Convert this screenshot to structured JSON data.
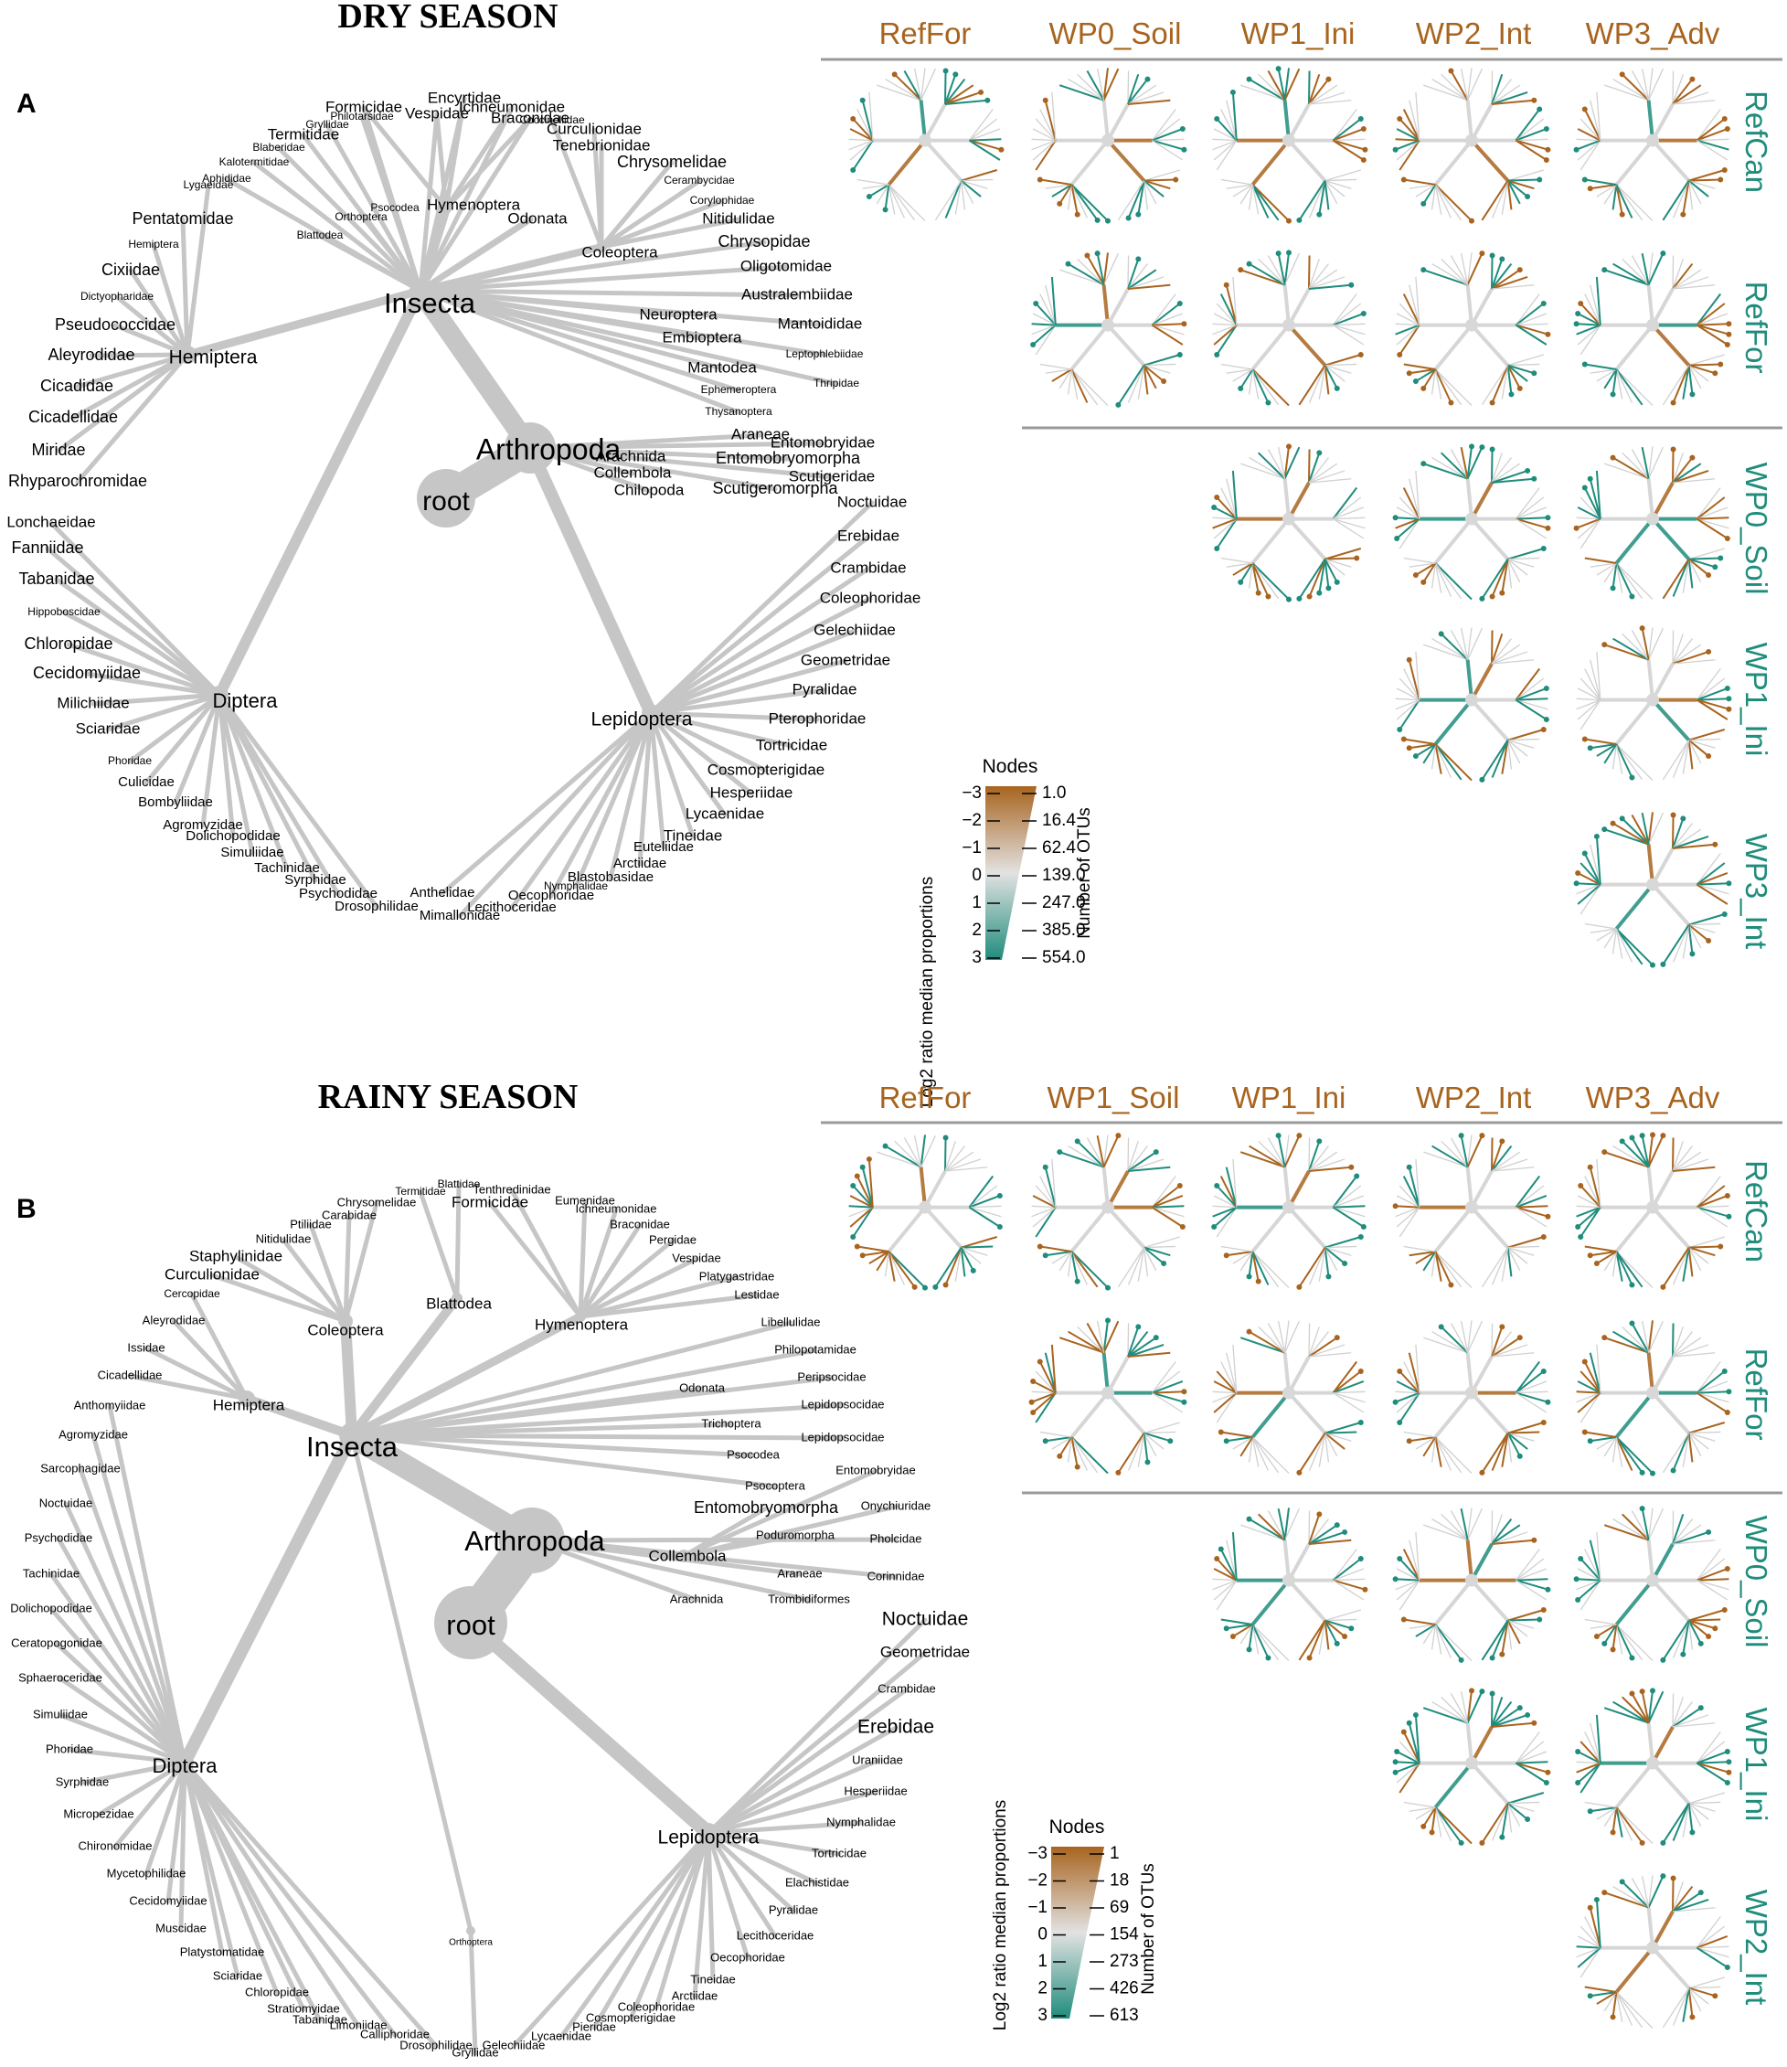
{
  "panels": [
    {
      "letter": "A",
      "season": "DRY SEASON",
      "columns": [
        "RefFor",
        "WP0_Soil",
        "WP1_Ini",
        "WP2_Int",
        "WP3_Adv"
      ],
      "rows": [
        "RefCan",
        "RefFor",
        "WP0_Soil",
        "WP1_Ini",
        "WP3_Int"
      ],
      "legend": {
        "title": "Nodes",
        "left_axis_label": "Log2 ratio median proportions",
        "right_axis_label": "Number of OTUs",
        "log2_ticks": [
          "−3",
          "−2",
          "−1",
          "0",
          "1",
          "2",
          "3"
        ],
        "otu_ticks": [
          "1.0",
          "16.4",
          "62.4",
          "139.0",
          "247.0",
          "385.0",
          "554.0"
        ]
      },
      "tree": {
        "root": "root",
        "phylum": "Arthropoda",
        "labels": {
          "insecta": "Insecta",
          "hemiptera": "Hemiptera",
          "diptera": "Diptera",
          "lepidoptera": "Lepidoptera",
          "hymenoptera": "Hymenoptera",
          "coleoptera": "Coleoptera",
          "odonata": "Odonata",
          "orthoptera": "Orthoptera",
          "psocodea": "Psocodea",
          "blattodea": "Blattodea",
          "neuroptera": "Neuroptera",
          "embioptera": "Embioptera",
          "mantodea": "Mantodea",
          "ephemeroptera": "Ephemeroptera",
          "thysanoptera": "Thysanoptera",
          "arachnida": "Arachnida",
          "araneae": "Araneae",
          "collembola": "Collembola",
          "entomobryomorpha": "Entomobryomorpha",
          "entomobryidae": "Entomobryidae",
          "chilopoda": "Chilopoda",
          "scutigeromorpha": "Scutigeromorpha",
          "scutigeridae": "Scutigeridae",
          "formicidae": "Formicidae",
          "encyrtidae": "Encyrtidae",
          "ichneumonidae": "Ichneumonidae",
          "vespidae": "Vespidae",
          "braconidae": "Braconidae",
          "philotarsidae": "Philotarsidae",
          "gryllidae": "Gryllidae",
          "termitidae": "Termitidae",
          "blaberidae": "Blaberidae",
          "kalotermitidae": "Kalotermitidae",
          "aphididae": "Aphididae",
          "lygaeidae": "Lygaeidae",
          "pentatomidae": "Pentatomidae",
          "hemiptera_f": "Hemiptera",
          "cixiidae": "Cixiidae",
          "dictyopharidae": "Dictyopharidae",
          "pseudococcidae": "Pseudococcidae",
          "aleyrodidae": "Aleyrodidae",
          "cicadidae": "Cicadidae",
          "cicadellidae": "Cicadellidae",
          "miridae": "Miridae",
          "rhyparochromidae": "Rhyparochromidae",
          "coccinellidae": "Coccinellidae",
          "curculionidae": "Curculionidae",
          "tenebrionidae": "Tenebrionidae",
          "chrysomelidae": "Chrysomelidae",
          "cerambycidae": "Cerambycidae",
          "corylophidae": "Corylophidae",
          "nitidulidae": "Nitidulidae",
          "chrysopidae": "Chrysopidae",
          "oligotomidae": "Oligotomidae",
          "australembiidae": "Australembiidae",
          "mantoididae": "Mantoididae",
          "leptophlebiidae": "Leptophlebiidae",
          "thripidae": "Thripidae",
          "lonchaeidae": "Lonchaeidae",
          "fanniidae": "Fanniidae",
          "tabanidae": "Tabanidae",
          "hippoboscidae": "Hippoboscidae",
          "chloropidae": "Chloropidae",
          "cecidomyiidae": "Cecidomyiidae",
          "milichiidae": "Milichiidae",
          "sciaridae": "Sciaridae",
          "phoridae": "Phoridae",
          "culicidae": "Culicidae",
          "bombyliidae": "Bombyliidae",
          "agromyzidae": "Agromyzidae",
          "dolichopodidae": "Dolichopodidae",
          "simuliidae": "Simuliidae",
          "tachinidae": "Tachinidae",
          "syrphidae": "Syrphidae",
          "psychodidae": "Psychodidae",
          "drosophilidae": "Drosophilidae",
          "noctuidae": "Noctuidae",
          "erebidae": "Erebidae",
          "crambidae": "Crambidae",
          "coleophoridae": "Coleophoridae",
          "gelechiidae": "Gelechiidae",
          "geometridae": "Geometridae",
          "pyralidae": "Pyralidae",
          "pterophoridae": "Pterophoridae",
          "tortricidae": "Tortricidae",
          "cosmopterigidae": "Cosmopterigidae",
          "hesperiidae": "Hesperiidae",
          "lycaenidae": "Lycaenidae",
          "tineidae": "Tineidae",
          "euteliidae": "Euteliidae",
          "arctiidae": "Arctiidae",
          "blastobasidae": "Blastobasidae",
          "nymphalidae": "Nymphalidae",
          "oecophoridae": "Oecophoridae",
          "lecithoceridae": "Lecithoceridae",
          "anthelidae": "Anthelidae",
          "mimallonidae": "Mimallonidae"
        }
      }
    },
    {
      "letter": "B",
      "season": "RAINY SEASON",
      "columns": [
        "RefFor",
        "WP1_Soil",
        "WP1_Ini",
        "WP2_Int",
        "WP3_Adv"
      ],
      "rows": [
        "RefCan",
        "RefFor",
        "WP0_Soil",
        "WP1_Ini",
        "WP2_Int"
      ],
      "legend": {
        "title": "Nodes",
        "left_axis_label": "Log2 ratio median proportions",
        "right_axis_label": "Number of OTUs",
        "log2_ticks": [
          "−3",
          "−2",
          "−1",
          "0",
          "1",
          "2",
          "3"
        ],
        "otu_ticks": [
          "1",
          "18",
          "69",
          "154",
          "273",
          "426",
          "613"
        ]
      },
      "tree": {
        "root": "root",
        "phylum": "Arthropoda",
        "labels": {
          "insecta": "Insecta",
          "hemiptera": "Hemiptera",
          "diptera": "Diptera",
          "lepidoptera": "Lepidoptera",
          "coleoptera": "Coleoptera",
          "blattodea": "Blattodea",
          "hymenoptera": "Hymenoptera",
          "orthoptera": "Orthoptera",
          "odonata": "Odonata",
          "trichoptera": "Trichoptera",
          "psocodea": "Psocodea",
          "psocoptera": "Psocoptera",
          "entomobryomorpha": "Entomobryomorpha",
          "collembola": "Collembola",
          "arachnida": "Arachnida",
          "poduromorpha": "Poduromorpha",
          "araneae": "Araneae",
          "trombidiformes": "Trombidiformes",
          "entomobryidae": "Entomobryidae",
          "onychiuridae": "Onychiuridae",
          "pholcidae": "Pholcidae",
          "corinnidae": "Corinnidae",
          "blattidae": "Blattidae",
          "termitidae": "Termitidae",
          "chrysomelidae": "Chrysomelidae",
          "carabidae": "Carabidae",
          "ptiliidae": "Ptiliidae",
          "nitidulidae": "Nitidulidae",
          "staphylinidae": "Staphylinidae",
          "curculionidae": "Curculionidae",
          "cercopidae": "Cercopidae",
          "aleyrodidae": "Aleyrodidae",
          "issidae": "Issidae",
          "cicadellidae": "Cicadellidae",
          "tenthredinidae": "Tenthredinidae",
          "formicidae": "Formicidae",
          "eumenidae": "Eumenidae",
          "ichneumonidae": "Ichneumonidae",
          "braconidae": "Braconidae",
          "pergidae": "Pergidae",
          "vespidae": "Vespidae",
          "platygastridae": "Platygastridae",
          "lestidae": "Lestidae",
          "libellulidae": "Libellulidae",
          "philopotamidae": "Philopotamidae",
          "peripsocidae": "Peripsocidae",
          "lepidopsocidae": "Lepidopsocidae",
          "lepidopsocidae2": "Lepidopsocidae",
          "anthomyiidae": "Anthomyiidae",
          "agromyzidae": "Agromyzidae",
          "sarcophagidae": "Sarcophagidae",
          "noctuidae_d": "Noctuidae",
          "psychodidae": "Psychodidae",
          "tachinidae": "Tachinidae",
          "dolichopodidae": "Dolichopodidae",
          "ceratopogonidae": "Ceratopogonidae",
          "sphaeroceridae": "Sphaeroceridae",
          "simuliidae": "Simuliidae",
          "phoridae": "Phoridae",
          "syrphidae": "Syrphidae",
          "micropezidae": "Micropezidae",
          "chironomidae": "Chironomidae",
          "mycetophilidae": "Mycetophilidae",
          "cecidomyiidae": "Cecidomyiidae",
          "muscidae": "Muscidae",
          "platystomatidae": "Platystomatidae",
          "sciaridae": "Sciaridae",
          "chloropidae": "Chloropidae",
          "stratiomyidae": "Stratiomyidae",
          "tabanidae": "Tabanidae",
          "limoniidae": "Limoniidae",
          "calliphoridae": "Calliphoridae",
          "drosophilidae": "Drosophilidae",
          "gryllidae": "Gryllidae",
          "gelechiidae": "Gelechiidae",
          "noctuidae": "Noctuidae",
          "geometridae": "Geometridae",
          "crambidae": "Crambidae",
          "erebidae": "Erebidae",
          "uraniidae": "Uraniidae",
          "hesperiidae": "Hesperiidae",
          "nymphalidae": "Nymphalidae",
          "tortricidae": "Tortricidae",
          "elachistidae": "Elachistidae",
          "pyralidae": "Pyralidae",
          "lecithoceridae": "Lecithoceridae",
          "oecophoridae": "Oecophoridae",
          "tineidae": "Tineidae",
          "arctiidae": "Arctiidae",
          "coleophoridae": "Coleophoridae",
          "cosmopterigidae": "Cosmopterigidae",
          "pieridae": "Pieridae",
          "lycaenidae": "Lycaenidae"
        }
      }
    }
  ]
}
